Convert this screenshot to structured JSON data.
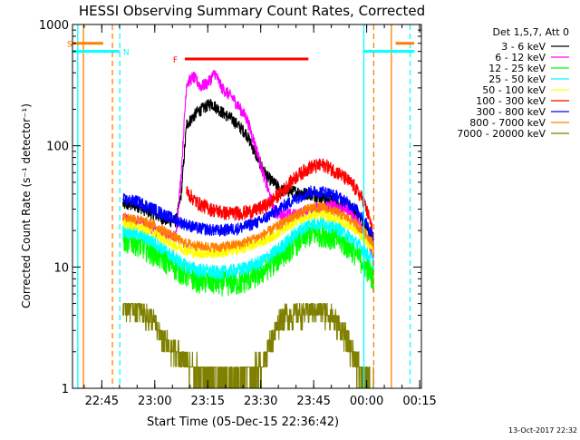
{
  "chart_data": {
    "type": "line",
    "title": "HESSI Observing Summary Count Rates, Corrected",
    "xlabel": "Start Time (05-Dec-15 22:36:42)",
    "ylabel": "Corrected Count Rate (s⁻¹ detector⁻¹)",
    "footer": "13-Oct-2017 22:32",
    "yscale": "log",
    "ylim": [
      1,
      1000
    ],
    "xlim_min": [
      36.7,
      135.5
    ],
    "y_ticks": [
      {
        "v": 1,
        "label": "1"
      },
      {
        "v": 10,
        "label": "10"
      },
      {
        "v": 100,
        "label": "100"
      },
      {
        "v": 1000,
        "label": "1000"
      }
    ],
    "x_ticks": [
      {
        "t": 45,
        "label": "22:45"
      },
      {
        "t": 60,
        "label": "23:00"
      },
      {
        "t": 75,
        "label": "23:15"
      },
      {
        "t": 90,
        "label": "23:30"
      },
      {
        "t": 105,
        "label": "23:45"
      },
      {
        "t": 120,
        "label": "00:00"
      },
      {
        "t": 135,
        "label": "00:15"
      }
    ],
    "legend": {
      "header": "Det 1,5,7, Att 0",
      "placement": "right",
      "entries": [
        {
          "label": "3 - 6 keV",
          "color": "#000000"
        },
        {
          "label": "6 - 12 keV",
          "color": "#ff00ff"
        },
        {
          "label": "12 - 25 keV",
          "color": "#00ff00"
        },
        {
          "label": "25 - 50 keV",
          "color": "#00ffff"
        },
        {
          "label": "50 - 100 keV",
          "color": "#ffff00"
        },
        {
          "label": "100 - 300 keV",
          "color": "#ff0000"
        },
        {
          "label": "300 - 800 keV",
          "color": "#0000ff"
        },
        {
          "label": "800 - 7000 keV",
          "color": "#ff8000"
        },
        {
          "label": "7000 - 20000 keV",
          "color": "#808000"
        }
      ]
    },
    "flags": [
      {
        "label": "S",
        "color": "#ff8000",
        "start": 36.7,
        "end": 45.4,
        "y": 700
      },
      {
        "label": "S",
        "color": "#ff8000",
        "start": 128.2,
        "end": 133.5,
        "y": 700
      },
      {
        "label": "N",
        "color": "#00ffff",
        "start": 36.7,
        "end": 50.0,
        "y": 600
      },
      {
        "label": "N",
        "color": "#00ffff",
        "start": 119.2,
        "end": 133.5,
        "y": 600
      },
      {
        "label": "F",
        "color": "#ff0000",
        "start": 68.5,
        "end": 103.5,
        "y": 520
      }
    ],
    "vlines": [
      {
        "t": 38.2,
        "color": "#00ffff",
        "style": "solid"
      },
      {
        "t": 39.8,
        "color": "#ff8000",
        "style": "solid"
      },
      {
        "t": 48.0,
        "color": "#ff8000",
        "style": "dashed"
      },
      {
        "t": 50.1,
        "color": "#00ffff",
        "style": "dashed"
      },
      {
        "t": 119.2,
        "color": "#00ffff",
        "style": "solid"
      },
      {
        "t": 122.0,
        "color": "#ff8000",
        "style": "dashed"
      },
      {
        "t": 127.0,
        "color": "#ff8000",
        "style": "solid"
      },
      {
        "t": 132.3,
        "color": "#00ffff",
        "style": "dashed"
      }
    ],
    "series": [
      {
        "name": "3 - 6 keV",
        "color": "#000000",
        "noise": 0.06,
        "t": [
          51,
          55,
          60,
          64,
          66,
          67.5,
          69,
          72,
          76,
          79,
          82,
          86,
          89,
          92,
          96,
          100,
          104,
          108,
          112,
          116,
          119,
          121,
          122
        ],
        "y": [
          33,
          32,
          27,
          24,
          24,
          40,
          150,
          190,
          225,
          190,
          165,
          125,
          80,
          55,
          43,
          42,
          40,
          37,
          34,
          30,
          24,
          18,
          15
        ]
      },
      {
        "name": "6 - 12 keV",
        "color": "#ff00ff",
        "noise": 0.06,
        "t": [
          51,
          55,
          60,
          64,
          66,
          67.5,
          69,
          71,
          73,
          75,
          77,
          79,
          82,
          86,
          89,
          91,
          94,
          100,
          105,
          110,
          115,
          119,
          121,
          122
        ],
        "y": [
          25,
          24,
          20,
          18,
          18,
          60,
          330,
          370,
          310,
          330,
          400,
          300,
          250,
          170,
          90,
          55,
          28,
          27,
          30,
          32,
          30,
          20,
          15,
          12
        ]
      },
      {
        "name": "12 - 25 keV",
        "color": "#00ff00",
        "noise": 0.12,
        "t": [
          51,
          55,
          60,
          64,
          68,
          72,
          78,
          84,
          90,
          95,
          100,
          104,
          108,
          112,
          116,
          119,
          121,
          122
        ],
        "y": [
          17,
          16,
          13,
          11,
          9,
          8,
          7.5,
          7.5,
          9,
          12,
          16,
          19,
          19,
          17,
          14,
          11,
          9,
          8
        ]
      },
      {
        "name": "25 - 50 keV",
        "color": "#00ffff",
        "noise": 0.07,
        "t": [
          51,
          55,
          60,
          64,
          68,
          72,
          78,
          84,
          90,
          95,
          100,
          104,
          108,
          112,
          116,
          119,
          121,
          122
        ],
        "y": [
          20,
          19,
          16,
          13,
          10.5,
          9.5,
          9,
          9.5,
          11,
          14,
          19,
          23,
          23,
          21,
          17,
          14,
          12,
          11
        ]
      },
      {
        "name": "50 - 100 keV",
        "color": "#ffff00",
        "noise": 0.05,
        "t": [
          51,
          55,
          60,
          64,
          68,
          72,
          78,
          84,
          90,
          95,
          100,
          104,
          108,
          112,
          116,
          119,
          121,
          122
        ],
        "y": [
          23,
          22,
          19,
          16,
          14,
          13,
          13,
          14,
          16,
          19,
          24,
          27,
          27,
          25,
          21,
          18,
          15,
          14
        ]
      },
      {
        "name": "100 - 300 keV",
        "color": "#ff0000",
        "noise": 0.07,
        "t": [
          69,
          72,
          76,
          80,
          84,
          88,
          92,
          96,
          100,
          104,
          108,
          112,
          116,
          119,
          121,
          122
        ],
        "y": [
          42,
          34,
          30,
          28,
          28,
          29,
          33,
          42,
          56,
          67,
          70,
          60,
          48,
          36,
          24,
          17
        ]
      },
      {
        "name": "300 - 800 keV",
        "color": "#0000ff",
        "noise": 0.06,
        "t": [
          51,
          55,
          60,
          64,
          68,
          72,
          78,
          84,
          90,
          95,
          100,
          104,
          108,
          112,
          116,
          119,
          121,
          122
        ],
        "y": [
          36,
          35,
          30,
          26,
          23,
          21,
          20,
          21,
          24,
          30,
          37,
          42,
          42,
          38,
          32,
          26,
          20,
          17
        ]
      },
      {
        "name": "800 - 7000 keV",
        "color": "#ff8000",
        "noise": 0.05,
        "t": [
          51,
          55,
          60,
          64,
          68,
          72,
          78,
          84,
          90,
          95,
          100,
          104,
          108,
          112,
          116,
          119,
          121,
          122
        ],
        "y": [
          26,
          25,
          22,
          19,
          16,
          15,
          14.5,
          15.5,
          18,
          22,
          27,
          31,
          31,
          28,
          24,
          20,
          17,
          15
        ]
      },
      {
        "name": "7000 - 20000 keV",
        "color": "#808000",
        "step": true,
        "t": [
          51,
          56,
          58,
          60,
          62,
          66,
          70,
          75,
          80,
          85,
          90,
          93,
          96,
          100,
          104,
          107,
          110,
          113,
          116,
          119,
          122
        ],
        "y": [
          5,
          4.5,
          4,
          3.5,
          2.5,
          2,
          1.5,
          1.3,
          1.2,
          1.3,
          1.5,
          2.5,
          4,
          4,
          4.5,
          4.5,
          4,
          3,
          2,
          1.2,
          1.1
        ]
      }
    ]
  }
}
